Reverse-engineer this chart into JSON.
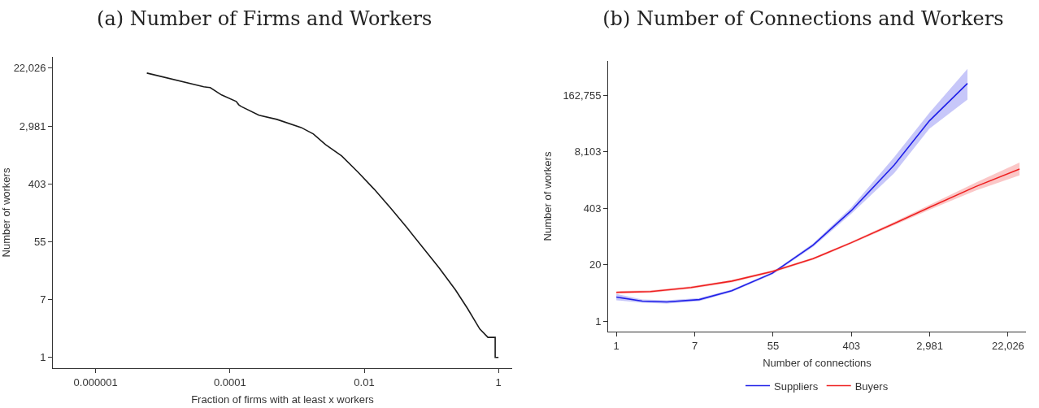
{
  "chart_data": [
    {
      "type": "line",
      "title": "(a) Number of Firms and Workers",
      "xlabel": "Fraction of firms with at least x workers",
      "ylabel": "Number of workers",
      "log": "xy",
      "grid": false,
      "legend": false,
      "marker": "none",
      "line_style": "solid",
      "x": [
        5.78e-06,
        4.06e-05,
        5.08e-05,
        7.5e-05,
        0.000124,
        0.000135,
        0.000146,
        0.00027,
        0.000499,
        0.00115,
        0.00175,
        0.00265,
        0.00462,
        0.00807,
        0.0141,
        0.0246,
        0.043,
        0.075,
        0.131,
        0.229,
        0.347,
        0.527,
        0.697,
        0.893,
        0.893,
        1
      ],
      "series": [
        {
          "color": "#1a1a1a",
          "values": [
            18600,
            11550,
            11230,
            8720,
            6970,
            6220,
            5880,
            4320,
            3750,
            2830,
            2260,
            1570,
            1060,
            605,
            335,
            176,
            89.5,
            44.3,
            22,
            10.3,
            5.4,
            2.67,
            2,
            2,
            1,
            1
          ]
        }
      ],
      "xlim": [
        2.3e-07,
        1.6
      ],
      "ylim": [
        0.69,
        32500
      ],
      "xticks": [
        {
          "value": 1e-06,
          "label": "0.000001"
        },
        {
          "value": 0.0001,
          "label": "0.0001"
        },
        {
          "value": 0.01,
          "label": "0.01"
        },
        1
      ],
      "yticks": [
        1,
        {
          "value": 7.389,
          "label": "7"
        },
        {
          "value": 54.6,
          "label": "55"
        },
        {
          "value": 403.4,
          "label": "403"
        },
        {
          "value": 2981,
          "label": "2,981"
        },
        {
          "value": 22026,
          "label": "22,026"
        }
      ]
    },
    {
      "type": "line",
      "title": "(b) Number of Connections and Workers",
      "xlabel": "Number of connections",
      "ylabel": "Number of workers",
      "log": "xy",
      "grid": false,
      "legend": "bottom",
      "marker": "none",
      "line_style": "solid",
      "series": [
        {
          "name": "Suppliers",
          "color": "#2020e8",
          "x": [
            1,
            1.94,
            3.62,
            8.3,
            19,
            53.7,
            151.6,
            402,
            1205,
            2945,
            7810
          ],
          "values": [
            3.59,
            2.9,
            2.78,
            3.15,
            5.04,
            12.8,
            57,
            355,
            4010,
            41700,
            307000
          ],
          "lower": [
            3.03,
            2.66,
            2.55,
            2.89,
            4.73,
            12,
            52,
            300,
            2620,
            27300,
            130000
          ],
          "upper": [
            4.26,
            3.16,
            3.03,
            3.43,
            5.37,
            13.6,
            62,
            420,
            6150,
            63800,
            660000
          ]
        },
        {
          "name": "Buyers",
          "color": "#ee2020",
          "x": [
            1,
            2.39,
            6.74,
            19,
            53.7,
            151.6,
            402,
            1205,
            2945,
            9610,
            29500
          ],
          "values": [
            4.63,
            4.83,
            5.97,
            8.4,
            14,
            27.6,
            64.7,
            180,
            421,
            1273,
            3245
          ],
          "lower": [
            4.34,
            4.53,
            5.6,
            7.88,
            13.1,
            25.9,
            60.7,
            165,
            371,
            1029,
            2310
          ],
          "upper": [
            4.94,
            5.15,
            6.36,
            8.95,
            14.9,
            29.4,
            69,
            196,
            478,
            1575,
            4560
          ]
        }
      ],
      "xlim": [
        0.81,
        34800
      ],
      "ylim": [
        0.575,
        1010000
      ],
      "xticks": [
        1,
        {
          "value": 7.389,
          "label": "7"
        },
        {
          "value": 54.6,
          "label": "55"
        },
        {
          "value": 403.4,
          "label": "403"
        },
        {
          "value": 2981,
          "label": "2,981"
        },
        {
          "value": 22026,
          "label": "22,026"
        }
      ],
      "yticks": [
        1,
        {
          "value": 20.09,
          "label": "20"
        },
        {
          "value": 403.4,
          "label": "403"
        },
        {
          "value": 8103,
          "label": "8,103"
        },
        {
          "value": 162755,
          "label": "162,755"
        }
      ]
    }
  ]
}
